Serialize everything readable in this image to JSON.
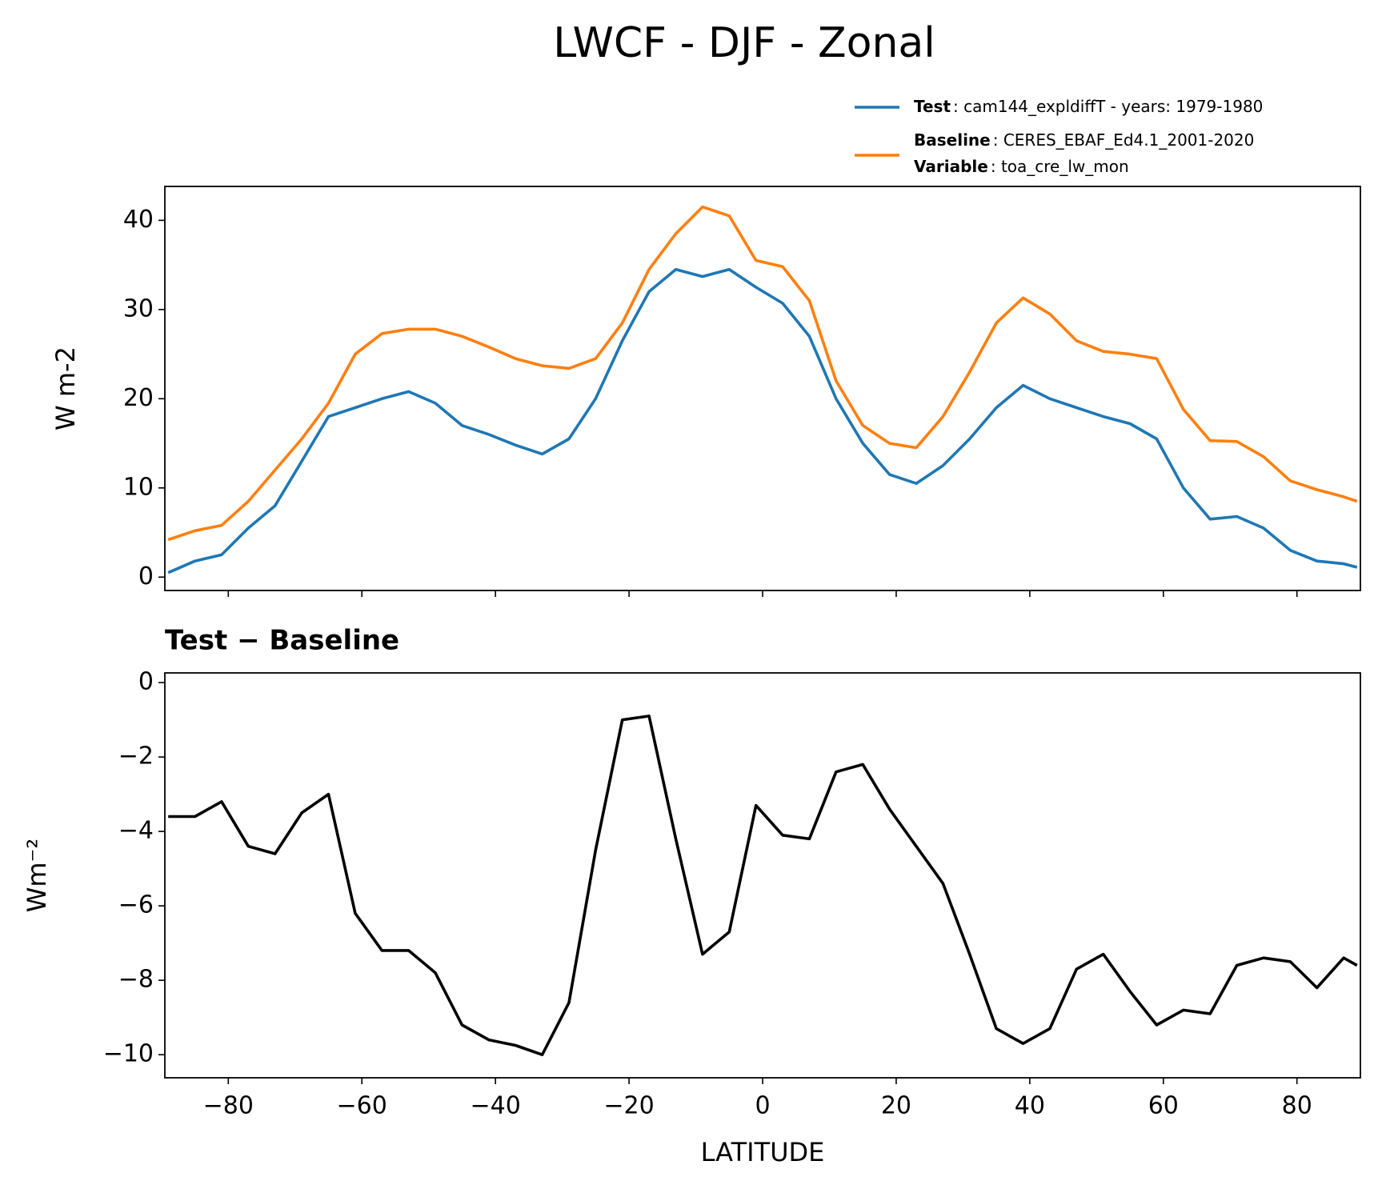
{
  "chart_data": [
    {
      "type": "line",
      "title": "LWCF - DJF - Zonal",
      "ylabel": "W m-2",
      "x": [
        -89,
        -85,
        -81,
        -77,
        -73,
        -69,
        -65,
        -61,
        -57,
        -53,
        -49,
        -45,
        -41,
        -37,
        -33,
        -29,
        -25,
        -21,
        -17,
        -13,
        -9,
        -5,
        -1,
        3,
        7,
        11,
        15,
        19,
        23,
        27,
        31,
        35,
        39,
        43,
        47,
        51,
        55,
        59,
        63,
        67,
        71,
        75,
        79,
        83,
        87,
        89
      ],
      "series": [
        {
          "name": "Test",
          "detail": ": cam144_expldiffT - years: 1979-1980",
          "color": "#1f77b4",
          "values": [
            0.5,
            1.8,
            2.5,
            5.5,
            8,
            13,
            18,
            19,
            20,
            20.8,
            19.5,
            17,
            16,
            14.8,
            13.8,
            15.5,
            20,
            26.5,
            32,
            34.5,
            33.7,
            34.5,
            32.5,
            30.7,
            27,
            20,
            15,
            11.5,
            10.5,
            12.5,
            15.5,
            19,
            21.5,
            20,
            19,
            18,
            17.2,
            15.5,
            10,
            6.5,
            6.8,
            5.5,
            3,
            1.8,
            1.5,
            1.1
          ]
        },
        {
          "name": "Baseline",
          "detail": ": CERES_EBAF_Ed4.1_2001-2020",
          "color": "#ff7f0e",
          "values": [
            4.2,
            5.2,
            5.8,
            8.5,
            12,
            15.5,
            19.5,
            25,
            27.3,
            27.8,
            27.8,
            27,
            25.8,
            24.5,
            23.7,
            23.4,
            24.5,
            28.5,
            34.5,
            38.5,
            41.5,
            40.5,
            35.5,
            34.8,
            31,
            22,
            17,
            15,
            14.5,
            18,
            23,
            28.5,
            31.3,
            29.5,
            26.5,
            25.3,
            25,
            24.5,
            18.8,
            15.3,
            15.2,
            13.5,
            10.8,
            9.8,
            9,
            8.5
          ]
        }
      ],
      "variable_label": "Variable",
      "variable": ": toa_cre_lw_mon",
      "xlim": [
        -89.5,
        89.5
      ],
      "xticks": [
        -80,
        -60,
        -40,
        -20,
        0,
        20,
        40,
        60,
        80
      ],
      "ylim": [
        -1.5,
        43.8
      ],
      "yticks": [
        0,
        10,
        20,
        30,
        40
      ],
      "legend": "upper right"
    },
    {
      "type": "line",
      "title": "Test − Baseline",
      "ylabel": "Wm⁻²",
      "xlabel": "LATITUDE",
      "x": [
        -89,
        -85,
        -81,
        -77,
        -73,
        -69,
        -65,
        -61,
        -57,
        -53,
        -49,
        -45,
        -41,
        -37,
        -33,
        -29,
        -25,
        -21,
        -17,
        -13,
        -9,
        -5,
        -1,
        3,
        7,
        11,
        15,
        19,
        23,
        27,
        31,
        35,
        39,
        43,
        47,
        51,
        55,
        59,
        63,
        67,
        71,
        75,
        79,
        83,
        87,
        89
      ],
      "series": [
        {
          "color": "#000000",
          "values": [
            -3.6,
            -3.6,
            -3.2,
            -4.4,
            -4.6,
            -3.5,
            -3,
            -6.2,
            -7.2,
            -7.2,
            -7.8,
            -9.2,
            -9.6,
            -9.75,
            -10,
            -8.6,
            -4.5,
            -1,
            -0.9,
            -4.2,
            -7.3,
            -6.7,
            -3.3,
            -4.1,
            -4.2,
            -2.4,
            -2.2,
            -3.4,
            -4.4,
            -5.4,
            -7.3,
            -9.3,
            -9.7,
            -9.3,
            -7.7,
            -7.3,
            -8.3,
            -9.2,
            -8.8,
            -8.9,
            -7.6,
            -7.4,
            -7.5,
            -8.2,
            -7.4,
            -7.6
          ]
        }
      ],
      "xlim": [
        -89.5,
        89.5
      ],
      "xticks": [
        {
          "value": -80,
          "label": "−80"
        },
        {
          "value": -60,
          "label": "−60"
        },
        {
          "value": -40,
          "label": "−40"
        },
        {
          "value": -20,
          "label": "−20"
        },
        0,
        20,
        40,
        60,
        80
      ],
      "ylim": [
        -10.62,
        0.26
      ],
      "yticks": [
        {
          "value": -10,
          "label": "−10"
        },
        {
          "value": -8,
          "label": "−8"
        },
        {
          "value": -6,
          "label": "−6"
        },
        {
          "value": -4,
          "label": "−4"
        },
        {
          "value": -2,
          "label": "−2"
        },
        0
      ]
    }
  ]
}
